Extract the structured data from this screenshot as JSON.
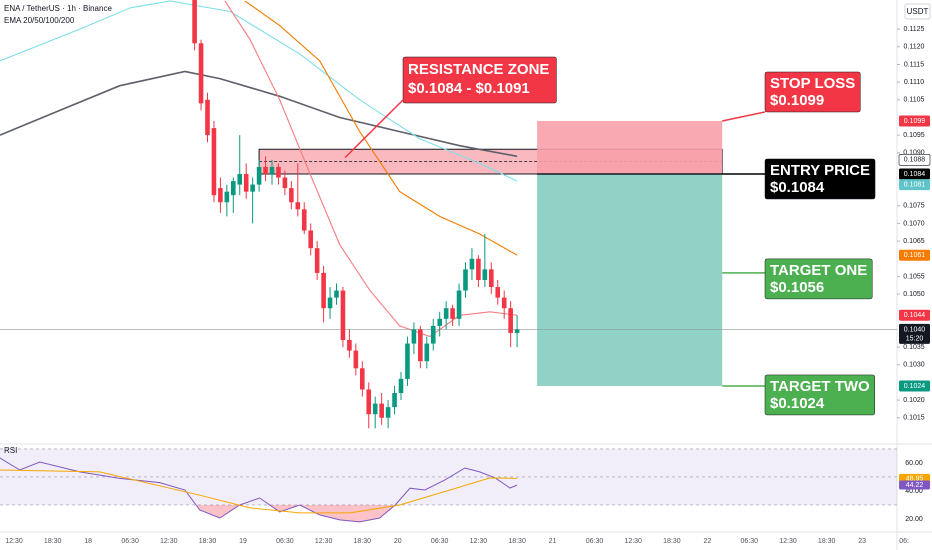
{
  "header": {
    "symbol": "ENA / TetherUS · 1h · Binance",
    "indicator": "EMA 20/50/100/200",
    "currency": "USDT"
  },
  "chart_data": [
    {
      "type": "candlestick",
      "up_color": "#089981",
      "down_color": "#f23645",
      "xlim": [
        -2.17,
        136.9
      ],
      "ylim": [
        0.10087,
        0.113325
      ],
      "yticks": [
        0.1125,
        {
          "value": 0.112,
          "label": "0.1120"
        },
        0.1115,
        {
          "value": 0.111,
          "label": "0.1110"
        },
        0.1105,
        0.1095,
        {
          "value": 0.109,
          "label": "0.1090"
        },
        0.1075,
        {
          "value": 0.107,
          "label": "0.1070"
        },
        0.1065,
        0.1055,
        {
          "value": 0.105,
          "label": "0.1050"
        },
        0.1035,
        {
          "value": 0.103,
          "label": "0.1030"
        },
        {
          "value": 0.102,
          "label": "0.1020"
        },
        0.1015
      ],
      "xticks": [
        {
          "value": 0,
          "label": "12:30"
        },
        {
          "value": 6,
          "label": "18:30"
        },
        {
          "value": 11.5,
          "label": "18"
        },
        {
          "value": 18,
          "label": "06:30"
        },
        {
          "value": 24,
          "label": "12:30"
        },
        {
          "value": 30,
          "label": "18:30"
        },
        {
          "value": 35.5,
          "label": "19"
        },
        {
          "value": 42,
          "label": "06:30"
        },
        {
          "value": 48,
          "label": "12:30"
        },
        {
          "value": 54,
          "label": "18:30"
        },
        {
          "value": 59.5,
          "label": "20"
        },
        {
          "value": 66,
          "label": "06:30"
        },
        {
          "value": 72,
          "label": "12:30"
        },
        {
          "value": 78,
          "label": "18:30"
        },
        {
          "value": 83.5,
          "label": "21"
        },
        {
          "value": 90,
          "label": "06:30"
        },
        {
          "value": 96,
          "label": "12:30"
        },
        {
          "value": 102,
          "label": "18:30"
        },
        {
          "value": 107.5,
          "label": "22"
        },
        {
          "value": 114,
          "label": "06:30"
        },
        {
          "value": 120,
          "label": "12:30"
        },
        {
          "value": 126,
          "label": "18:30"
        },
        {
          "value": 131.5,
          "label": "23"
        },
        {
          "value": 138,
          "label": "06:"
        }
      ],
      "candles": {
        "x": [
          28,
          29,
          30,
          31,
          32,
          33,
          34,
          35,
          36,
          37,
          38,
          39,
          40,
          41,
          42,
          43,
          44,
          45,
          46,
          47,
          48,
          49,
          50,
          51,
          52,
          53,
          54,
          55,
          56,
          57,
          58,
          59,
          60,
          61,
          62,
          63,
          64,
          65,
          66,
          67,
          68,
          69,
          70,
          71,
          72,
          73,
          74,
          75,
          76,
          77,
          78
        ],
        "open": [
          0.1134,
          0.1121,
          0.1105,
          0.1097,
          0.108,
          0.1076,
          0.1078,
          0.1081,
          0.1084,
          0.1079,
          0.1081,
          0.1086,
          0.1084,
          0.1086,
          0.1083,
          0.108,
          0.1076,
          0.1074,
          0.1068,
          0.1063,
          0.1056,
          0.1046,
          0.1049,
          0.1051,
          0.1037,
          0.1034,
          0.1029,
          0.1023,
          0.1016,
          0.1019,
          0.1015,
          0.1018,
          0.1022,
          0.1026,
          0.1036,
          0.104,
          0.1031,
          0.1036,
          0.1041,
          0.1043,
          0.1046,
          0.1043,
          0.1051,
          0.1057,
          0.106,
          0.1054,
          0.1057,
          0.1052,
          0.1049,
          0.1046,
          0.1039
        ],
        "high": [
          0.1136,
          0.1122,
          0.1107,
          0.1099,
          0.1083,
          0.1081,
          0.1083,
          0.1095,
          0.1087,
          0.1083,
          0.1088,
          0.1089,
          0.1088,
          0.1087,
          0.1085,
          0.1082,
          0.1087,
          0.1076,
          0.107,
          0.1065,
          0.1058,
          0.1052,
          0.1053,
          0.1052,
          0.104,
          0.1036,
          0.1031,
          0.1025,
          0.1021,
          0.1022,
          0.102,
          0.1024,
          0.1028,
          0.1038,
          0.1042,
          0.1041,
          0.1038,
          0.1043,
          0.1045,
          0.1048,
          0.1047,
          0.1053,
          0.1059,
          0.1063,
          0.1061,
          0.1067,
          0.1059,
          0.1054,
          0.1051,
          0.1048,
          0.1044
        ],
        "low": [
          0.1119,
          0.1102,
          0.1093,
          0.1076,
          0.1073,
          0.1072,
          0.1073,
          0.1078,
          0.1077,
          0.107,
          0.1079,
          0.1082,
          0.1081,
          0.1081,
          0.1078,
          0.1074,
          0.1072,
          0.1067,
          0.1061,
          0.1054,
          0.1042,
          0.1043,
          0.1047,
          0.1035,
          0.1032,
          0.1027,
          0.1021,
          0.1012,
          0.1012,
          0.1013,
          0.1012,
          0.1016,
          0.102,
          0.1024,
          0.1033,
          0.1029,
          0.1029,
          0.1034,
          0.1038,
          0.104,
          0.1041,
          0.1041,
          0.1049,
          0.1054,
          0.1052,
          0.1052,
          0.105,
          0.1047,
          0.1043,
          0.1035,
          0.1035
        ],
        "close": [
          0.1121,
          0.1104,
          0.1095,
          0.1078,
          0.1076,
          0.1079,
          0.1082,
          0.1084,
          0.1079,
          0.1081,
          0.1086,
          0.1084,
          0.1086,
          0.1083,
          0.108,
          0.1076,
          0.1074,
          0.1068,
          0.1063,
          0.1056,
          0.1046,
          0.1049,
          0.1051,
          0.1037,
          0.1034,
          0.1029,
          0.1023,
          0.1016,
          0.1019,
          0.1015,
          0.1018,
          0.1022,
          0.1026,
          0.1036,
          0.104,
          0.1031,
          0.1036,
          0.1041,
          0.1043,
          0.1046,
          0.1043,
          0.1051,
          0.1057,
          0.106,
          0.1054,
          0.1057,
          0.1052,
          0.1049,
          0.1046,
          0.1039,
          0.104
        ]
      },
      "series": [
        {
          "color": "#5d606b",
          "x": [
            -2.17,
            7.1,
            16.4,
            26.5,
            31.9,
            41.2,
            50.5,
            59.8,
            69.1,
            78
          ],
          "values": [
            0.1095,
            0.1102,
            0.1109,
            0.1113,
            0.1111,
            0.1106,
            0.11,
            0.1096,
            0.1092,
            0.1089
          ]
        },
        {
          "color": "#80deea",
          "x": [
            -2.17,
            10.2,
            18,
            24.2,
            33.5,
            44.3,
            53.6,
            62.9,
            72.2,
            78
          ],
          "values": [
            0.1116,
            0.1125,
            0.1131,
            0.1133,
            0.113,
            0.1118,
            0.1105,
            0.1094,
            0.1087,
            0.1082
          ]
        },
        {
          "color": "#f57c00",
          "x": [
            35.8,
            41.2,
            47.4,
            53.6,
            59.8,
            66,
            72.2,
            78
          ],
          "values": [
            0.1133,
            0.1126,
            0.1116,
            0.1096,
            0.1079,
            0.1072,
            0.1067,
            0.1061
          ]
        },
        {
          "color": "#f77c80",
          "x": [
            32.7,
            36.6,
            41.2,
            45.9,
            50.5,
            55.2,
            59.8,
            64.5,
            69.1,
            73.8,
            78
          ],
          "values": [
            0.1133,
            0.1122,
            0.1105,
            0.1084,
            0.1064,
            0.1051,
            0.1041,
            0.1038,
            0.1044,
            0.1045,
            0.1044
          ]
        }
      ],
      "resistance_zone": {
        "low": 0.1084,
        "high": 0.1091,
        "x_range": [
          38,
          109.8
        ],
        "title": "RESISTANCE ZONE",
        "text": "$0.1084 - $0.1091",
        "color": "#f23645"
      },
      "position": {
        "stop_loss": 0.1099,
        "entry": 0.1084,
        "target": 0.1024,
        "x_range": [
          81.1,
          109.8
        ],
        "stop_color": "#f7a0a8",
        "target_color": "#84cdbe"
      },
      "callouts": [
        {
          "title": "STOP LOSS",
          "text": "$0.1099",
          "value": 0.1099,
          "color": "#f23645"
        },
        {
          "title": "ENTRY PRICE",
          "text": "$0.1084",
          "value": 0.1084,
          "color": "#000000"
        },
        {
          "title": "TARGET ONE",
          "text": "$0.1056",
          "value": 0.1056,
          "color": "#4caf50"
        },
        {
          "title": "TARGET TWO",
          "text": "$0.1024",
          "value": 0.1024,
          "color": "#4caf50"
        }
      ],
      "current_price": {
        "value": 0.104,
        "label": "0.1040",
        "countdown": "15:20",
        "color": "#131722"
      },
      "price_labels": [
        {
          "value": 0.1099,
          "label": "0.1099",
          "color": "#f23645",
          "text_color": "#ffffff"
        },
        {
          "value": 0.1088,
          "label": "0.1088",
          "color": "#ffffff",
          "text_color": "#131722"
        },
        {
          "value": 0.1084,
          "label": "0.1084",
          "color": "#000000",
          "text_color": "#ffffff"
        },
        {
          "value": 0.1081,
          "label": "0.1081",
          "color": "#5fc4c9",
          "text_color": "#ffffff"
        },
        {
          "value": 0.1061,
          "label": "0.1061",
          "color": "#f57c00",
          "text_color": "#ffffff"
        },
        {
          "value": 0.1044,
          "label": "0.1044",
          "color": "#f23645",
          "text_color": "#ffffff"
        },
        {
          "value": 0.1024,
          "label": "0.1024",
          "color": "#089981",
          "text_color": "#ffffff"
        }
      ]
    },
    {
      "type": "line",
      "title": "RSI",
      "ylim": [
        12.1,
        70.7
      ],
      "yticks": [
        {
          "value": 60,
          "label": "60.00"
        },
        {
          "value": 40,
          "label": "40.00"
        },
        {
          "value": 20,
          "label": "20.00"
        }
      ],
      "band": [
        30,
        70
      ],
      "levels": [
        30,
        50,
        70
      ],
      "band_color": "#7e57c2",
      "oversold_color": "#f23645",
      "series": [
        {
          "color": "#7e57c2",
          "x": [
            -2.2,
            0.9,
            4,
            10.2,
            16.4,
            22.6,
            26.5,
            28.8,
            31.9,
            35,
            38.1,
            41.2,
            44.3,
            47.4,
            50.5,
            53.6,
            56.7,
            59.1,
            61.4,
            63.7,
            66.8,
            69.9,
            72.2,
            74.6,
            76.9,
            78
          ],
          "values": [
            63.6,
            55,
            60.7,
            53.6,
            49,
            46,
            40.7,
            26.4,
            20.7,
            30,
            35,
            25,
            30,
            22.9,
            19.3,
            17.9,
            20.7,
            30,
            42,
            40.7,
            47.9,
            56.4,
            53.6,
            49.3,
            42.1,
            44.22
          ]
        },
        {
          "color": "#f7a600",
          "x": [
            -2.2,
            13.3,
            28.8,
            36.6,
            44.3,
            52.1,
            59.8,
            67.6,
            73.8,
            78
          ],
          "values": [
            55,
            53.6,
            37,
            27.9,
            24.3,
            24.3,
            30,
            40.7,
            49.3,
            48.95
          ]
        }
      ],
      "value_labels": [
        {
          "value": 48.95,
          "label": "48.95",
          "color": "#f7a600"
        },
        {
          "value": 44.22,
          "label": "44.22",
          "color": "#7e57c2"
        }
      ]
    }
  ]
}
